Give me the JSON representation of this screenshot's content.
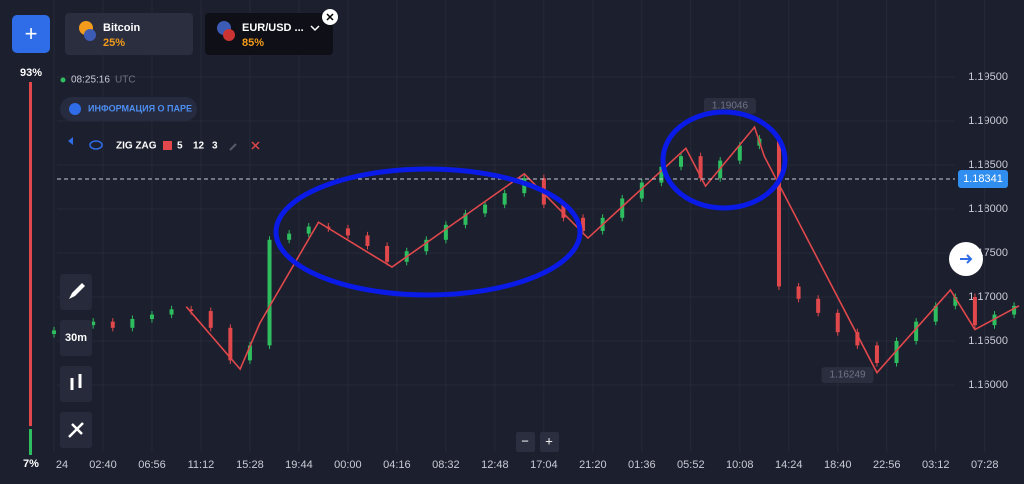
{
  "header": {
    "add_button": "+",
    "assets": [
      {
        "name": "Bitcoin",
        "payout": "25%"
      },
      {
        "name": "EUR/USD ...",
        "payout": "85%"
      }
    ]
  },
  "sentiment": {
    "values": [
      93,
      7
    ],
    "value_labels": [
      "93%",
      "7%"
    ]
  },
  "clock": {
    "time": "08:25:16",
    "zone": "UTC"
  },
  "info_button": "ИНФОРМАЦИЯ О ПАРЕ",
  "indicator": {
    "name": "ZIG ZAG",
    "params": [
      "5",
      "12",
      "3"
    ]
  },
  "toolbar": {
    "timeframe": "30m"
  },
  "zoom": [
    "−",
    "+"
  ],
  "chart": {
    "type": "candlestick",
    "ylim": [
      1.16,
      1.195
    ],
    "yticks": [
      {
        "value": 1.16,
        "label": "1.16000"
      },
      {
        "value": 1.165,
        "label": "1.16500"
      },
      {
        "value": 1.17,
        "label": "1.17000"
      },
      {
        "value": 1.175,
        "label": "1.17500"
      },
      {
        "value": 1.18,
        "label": "1.18000"
      },
      {
        "value": 1.185,
        "label": "1.18500"
      },
      {
        "value": 1.19,
        "label": "1.19000"
      },
      {
        "value": 1.195,
        "label": "1.19500"
      }
    ],
    "xlim": [
      0,
      197
    ],
    "xticks": [
      {
        "value": 0,
        "label": "24"
      },
      {
        "value": 10,
        "label": "02:40"
      },
      {
        "value": 20,
        "label": "06:56"
      },
      {
        "value": 30,
        "label": "11:12"
      },
      {
        "value": 40,
        "label": "15:28"
      },
      {
        "value": 50,
        "label": "19:44"
      },
      {
        "value": 60,
        "label": "00:00"
      },
      {
        "value": 70,
        "label": "04:16"
      },
      {
        "value": 80,
        "label": "08:32"
      },
      {
        "value": 90,
        "label": "12:48"
      },
      {
        "value": 100,
        "label": "17:04"
      },
      {
        "value": 110,
        "label": "21:20"
      },
      {
        "value": 120,
        "label": "01:36"
      },
      {
        "value": 130,
        "label": "05:52"
      },
      {
        "value": 140,
        "label": "10:08"
      },
      {
        "value": 150,
        "label": "14:24"
      },
      {
        "value": 160,
        "label": "18:40"
      },
      {
        "value": 170,
        "label": "22:56"
      },
      {
        "value": 180,
        "label": "03:12"
      },
      {
        "value": 190,
        "label": "07:28"
      }
    ],
    "up_color": "#2ebd5f",
    "down_color": "#e0484c",
    "candle_x": [
      0,
      4,
      8,
      12,
      16,
      20,
      24,
      28,
      32,
      36,
      40,
      44,
      48,
      52,
      56,
      60,
      64,
      68,
      72,
      76,
      80,
      84,
      88,
      92,
      96,
      100,
      104,
      108,
      112,
      116,
      120,
      124,
      128,
      132,
      136,
      140,
      144,
      148,
      152,
      156,
      160,
      164,
      168,
      172,
      176,
      180,
      184,
      188,
      192,
      196
    ],
    "candles": [
      [
        1.1658,
        1.1666,
        1.1654,
        1.1662
      ],
      [
        1.1662,
        1.1672,
        1.1658,
        1.1668
      ],
      [
        1.1668,
        1.1676,
        1.1664,
        1.1672
      ],
      [
        1.1672,
        1.1676,
        1.1661,
        1.1665
      ],
      [
        1.1665,
        1.1679,
        1.1661,
        1.1675
      ],
      [
        1.1675,
        1.1684,
        1.1671,
        1.168
      ],
      [
        1.168,
        1.169,
        1.1676,
        1.1686
      ],
      [
        1.1686,
        1.169,
        1.168,
        1.1684
      ],
      [
        1.1684,
        1.1688,
        1.1661,
        1.1665
      ],
      [
        1.1665,
        1.1669,
        1.1624,
        1.1628
      ],
      [
        1.1628,
        1.1649,
        1.1624,
        1.1645
      ],
      [
        1.1645,
        1.1769,
        1.1641,
        1.1765
      ],
      [
        1.1765,
        1.1776,
        1.1761,
        1.1772
      ],
      [
        1.1772,
        1.1784,
        1.1768,
        1.178
      ],
      [
        1.178,
        1.1784,
        1.1774,
        1.1778
      ],
      [
        1.1778,
        1.1782,
        1.1766,
        1.177
      ],
      [
        1.177,
        1.1774,
        1.1754,
        1.1758
      ],
      [
        1.1758,
        1.1762,
        1.1736,
        1.174
      ],
      [
        1.174,
        1.1756,
        1.1736,
        1.1752
      ],
      [
        1.1752,
        1.1769,
        1.1748,
        1.1765
      ],
      [
        1.1765,
        1.1786,
        1.1761,
        1.1782
      ],
      [
        1.1782,
        1.1799,
        1.1778,
        1.1795
      ],
      [
        1.1795,
        1.1809,
        1.1791,
        1.1805
      ],
      [
        1.1805,
        1.1822,
        1.1801,
        1.1818
      ],
      [
        1.1818,
        1.1839,
        1.1814,
        1.1835
      ],
      [
        1.1835,
        1.1839,
        1.1801,
        1.1805
      ],
      [
        1.1805,
        1.1809,
        1.1786,
        1.179
      ],
      [
        1.179,
        1.1794,
        1.1771,
        1.1775
      ],
      [
        1.1775,
        1.1794,
        1.1771,
        1.179
      ],
      [
        1.179,
        1.1816,
        1.1786,
        1.1812
      ],
      [
        1.1812,
        1.1834,
        1.1808,
        1.183
      ],
      [
        1.183,
        1.1852,
        1.1826,
        1.1848
      ],
      [
        1.1848,
        1.1864,
        1.1844,
        1.186
      ],
      [
        1.186,
        1.1864,
        1.1831,
        1.1835
      ],
      [
        1.1835,
        1.1859,
        1.1831,
        1.1855
      ],
      [
        1.1855,
        1.1876,
        1.1851,
        1.1872
      ],
      [
        1.1872,
        1.1884,
        1.1868,
        1.188
      ],
      [
        1.188,
        1.1884,
        1.1708,
        1.1712
      ],
      [
        1.1712,
        1.1716,
        1.1694,
        1.1698
      ],
      [
        1.1698,
        1.1702,
        1.1678,
        1.1682
      ],
      [
        1.1682,
        1.1686,
        1.1656,
        1.166
      ],
      [
        1.166,
        1.1664,
        1.1641,
        1.1645
      ],
      [
        1.1645,
        1.1649,
        1.1621,
        1.1625
      ],
      [
        1.1625,
        1.1654,
        1.1621,
        1.165
      ],
      [
        1.165,
        1.1676,
        1.1646,
        1.1672
      ],
      [
        1.1672,
        1.1694,
        1.1668,
        1.169
      ],
      [
        1.169,
        1.1704,
        1.1686,
        1.17
      ],
      [
        1.17,
        1.1704,
        1.1664,
        1.1668
      ],
      [
        1.1668,
        1.1684,
        1.1664,
        1.168
      ],
      [
        1.168,
        1.1694,
        1.1676,
        1.169
      ]
    ],
    "zigzag": {
      "color": "#e0484c",
      "x": [
        27,
        38,
        42,
        54,
        69,
        96,
        109,
        129,
        133,
        143,
        145,
        168,
        183,
        188,
        197
      ],
      "values": [
        1.1689,
        1.1618,
        1.167,
        1.1785,
        1.1734,
        1.184,
        1.1767,
        1.1869,
        1.1826,
        1.1893,
        1.186,
        1.1614,
        1.1708,
        1.1663,
        1.169
      ]
    },
    "current_price": 1.18341,
    "high_marker": {
      "x": 138,
      "value": 1.19046
    },
    "low_marker": {
      "x": 162,
      "value": 1.16249
    }
  }
}
